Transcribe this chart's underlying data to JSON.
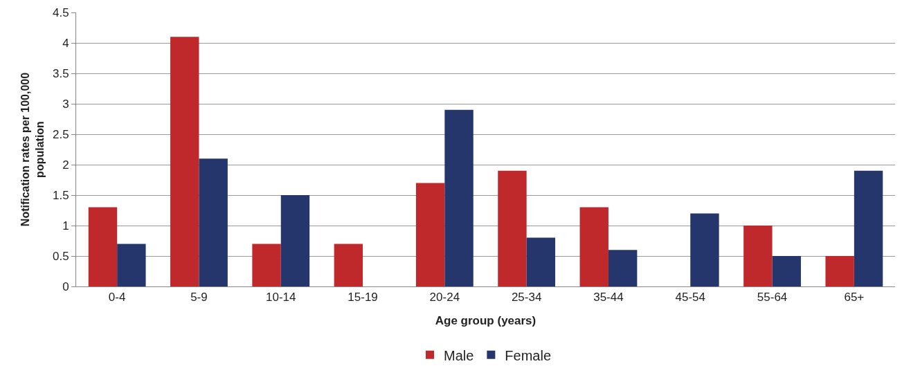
{
  "chart_data": {
    "type": "bar",
    "xlabel": "Age group (years)",
    "ylabel": "Notification rates per 100,000 population",
    "categories": [
      "0-4",
      "5-9",
      "10-14",
      "15-19",
      "20-24",
      "25-34",
      "35-44",
      "45-54",
      "55-64",
      "65+"
    ],
    "series": [
      {
        "name": "Male",
        "color": "#c0292b",
        "values": [
          1.3,
          4.1,
          0.7,
          0.7,
          1.7,
          1.9,
          1.3,
          0,
          1.0,
          0.5
        ]
      },
      {
        "name": "Female",
        "color": "#24366b",
        "values": [
          0.7,
          2.1,
          1.5,
          0,
          2.9,
          0.8,
          0.6,
          1.2,
          0.5,
          1.9
        ]
      }
    ],
    "ylim": [
      0,
      4.5
    ],
    "yticks": [
      0,
      0.5,
      1,
      1.5,
      2,
      2.5,
      3,
      3.5,
      4,
      4.5
    ],
    "grid": "y",
    "legend": "bottom"
  }
}
